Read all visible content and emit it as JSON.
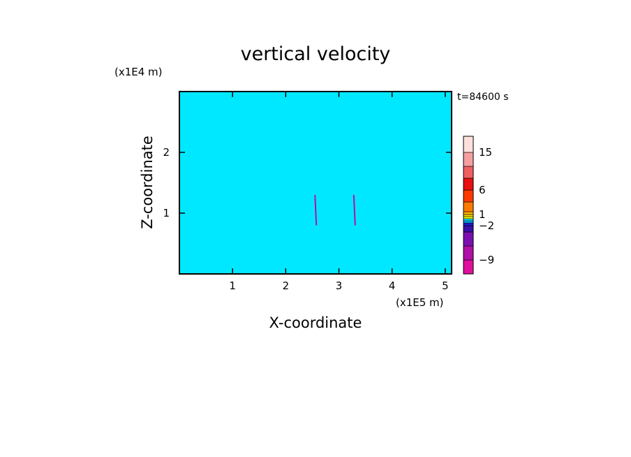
{
  "chart_data": {
    "type": "heatmap",
    "title": "vertical velocity",
    "xlabel": "X-coordinate",
    "ylabel": "Z-coordinate",
    "x_unit": "(x1E5 m)",
    "y_unit": "(x1E4 m)",
    "time_label": "t=84600 s",
    "xlim": [
      0,
      5.12
    ],
    "ylim": [
      0,
      3.0
    ],
    "x_ticks": [
      1,
      2,
      3,
      4,
      5
    ],
    "y_ticks": [
      1,
      2
    ],
    "x_tick_labels": [
      "1",
      "2",
      "3",
      "4",
      "5"
    ],
    "y_tick_labels": [
      "1",
      "2"
    ],
    "colorbar": {
      "levels": [
        -12,
        -9,
        -6,
        -4,
        -2,
        -1,
        -0.5,
        0,
        0.5,
        1,
        2,
        4,
        6,
        9,
        12,
        15,
        20
      ],
      "colors": [
        "#e0109a",
        "#b010a8",
        "#7a10b0",
        "#3a10a8",
        "#1a1ad0",
        "#00b0ff",
        "#00e6ff",
        "#ffff00",
        "#ffe000",
        "#ffb000",
        "#ff7a00",
        "#ff3a00",
        "#e81010",
        "#f06060",
        "#f4a0a0",
        "#fde0dc"
      ],
      "labeled_values": [
        15,
        6,
        1,
        -2,
        -9
      ],
      "labels": [
        "15",
        "6",
        "1",
        "−2",
        "−9"
      ]
    },
    "field": {
      "positive_color": "#ffff00",
      "negative_color": "#00e8ff",
      "dominant_range": [
        -0.5,
        0.5
      ],
      "updraft_streaks_x": [
        2.55,
        3.28
      ]
    }
  }
}
